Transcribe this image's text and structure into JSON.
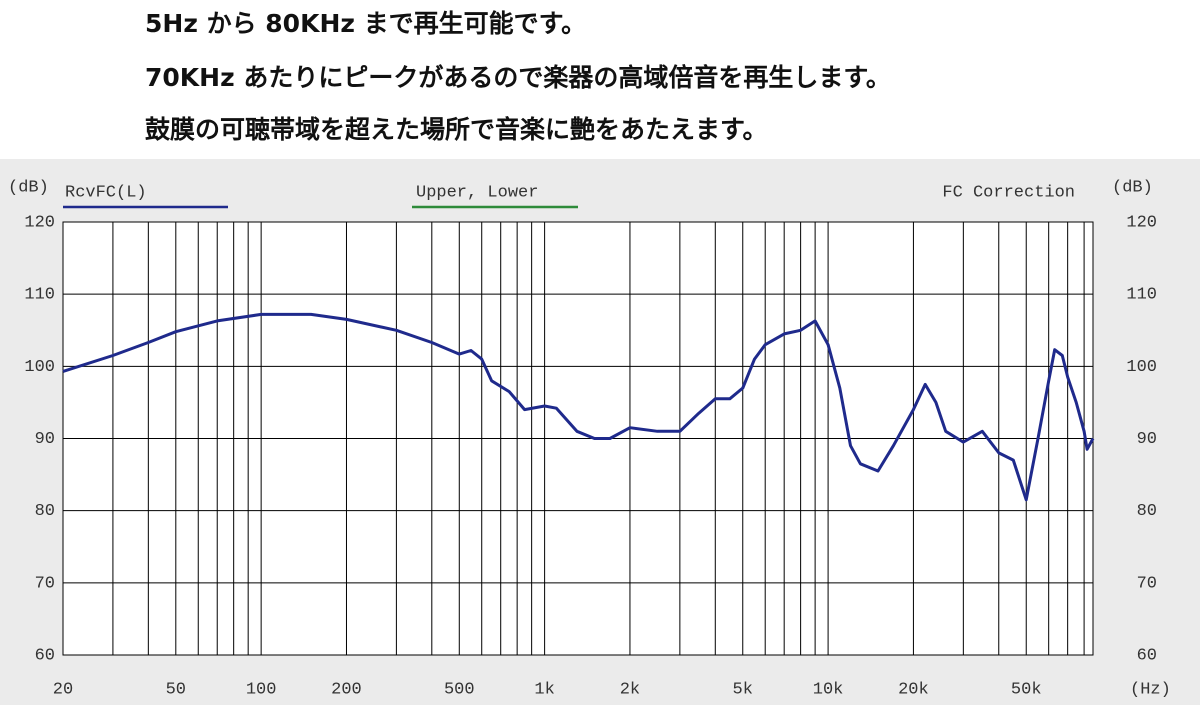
{
  "header_lines": [
    "5Hz から 80KHz まで再生可能です。",
    "70KHz あたりにピークがあるので楽器の高域倍音を再生します。",
    "鼓膜の可聴帯域を超えた場所で音楽に艶をあたえます。"
  ],
  "chart_data": {
    "type": "line",
    "y_unit_label": "(dB)",
    "x_unit_label": "(Hz)",
    "annotations": [
      {
        "text": "Upper, Lower",
        "color": "#2e8b3a"
      },
      {
        "text": "FC Correction",
        "color": "#333333"
      }
    ],
    "x_scale": "log",
    "grid": true,
    "xlim": [
      20,
      86000
    ],
    "ylim": [
      60,
      120
    ],
    "yticks": [
      60,
      70,
      80,
      90,
      100,
      110,
      120
    ],
    "xticks": [
      20,
      50,
      100,
      200,
      500,
      {
        "value": 1000,
        "label": "1k"
      },
      {
        "value": 2000,
        "label": "2k"
      },
      {
        "value": 5000,
        "label": "5k"
      },
      {
        "value": 10000,
        "label": "10k"
      },
      {
        "value": 20000,
        "label": "20k"
      },
      {
        "value": 50000,
        "label": "50k"
      }
    ],
    "x_minor_grid": [
      30,
      40,
      60,
      70,
      80,
      90,
      300,
      400,
      600,
      700,
      800,
      900,
      3000,
      4000,
      6000,
      7000,
      8000,
      9000,
      30000,
      40000,
      60000,
      70000,
      80000
    ],
    "x": [
      20,
      30,
      40,
      50,
      70,
      100,
      150,
      200,
      300,
      400,
      500,
      550,
      600,
      650,
      750,
      850,
      1000,
      1100,
      1300,
      1500,
      1700,
      2000,
      2500,
      3000,
      3500,
      4000,
      4500,
      5000,
      5500,
      6000,
      7000,
      8000,
      9000,
      10000,
      11000,
      12000,
      13000,
      15000,
      17000,
      20000,
      22000,
      24000,
      26000,
      30000,
      35000,
      40000,
      45000,
      50000,
      55000,
      60000,
      63000,
      67000,
      70000,
      75000,
      80000,
      82000,
      86000
    ],
    "series": [
      {
        "name": "RcvFC(L)",
        "color": "#1f2a8c",
        "values": [
          99.3,
          101.5,
          103.3,
          104.8,
          106.3,
          107.2,
          107.2,
          106.5,
          105,
          103.3,
          101.7,
          102.2,
          101,
          98,
          96.5,
          94,
          94.5,
          94.2,
          91,
          90,
          90,
          91.5,
          91,
          91,
          93.5,
          95.5,
          95.5,
          97,
          101,
          103,
          104.5,
          105,
          106.3,
          103,
          97,
          89,
          86.5,
          85.5,
          89,
          94,
          97.5,
          95,
          91,
          89.5,
          91,
          88,
          87,
          81.5,
          90,
          98,
          102.3,
          101.5,
          98.5,
          95,
          91,
          88.5,
          90
        ]
      }
    ]
  }
}
